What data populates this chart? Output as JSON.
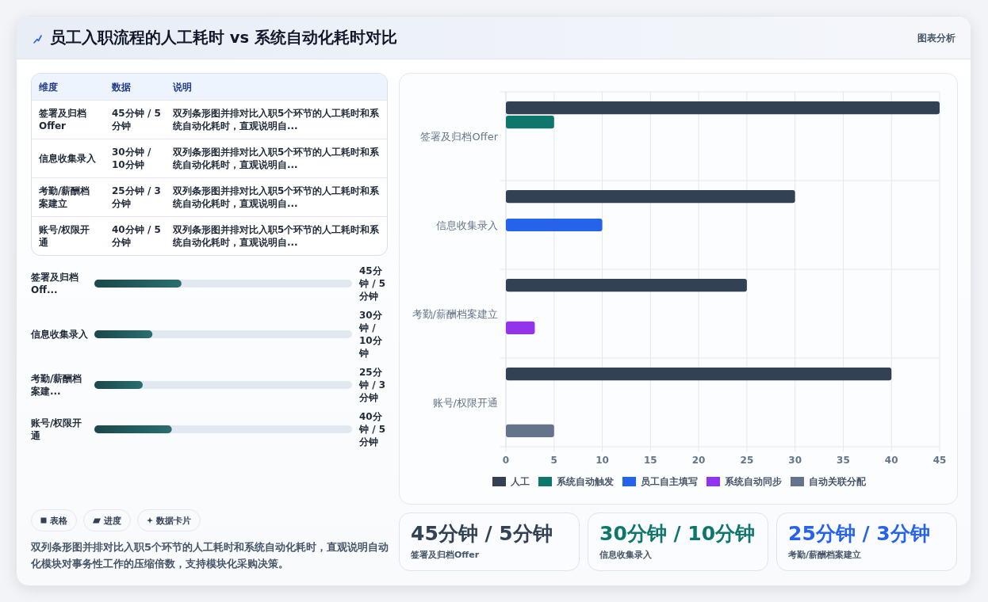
{
  "chart_data": [
    {
      "type": "other",
      "title": "员工入职流程的人工耗时 vs 系统自动化耗时对比",
      "annotations": [
        "图表分析"
      ]
    },
    {
      "type": "other",
      "annotations": [
        "维度",
        "数据",
        "说明",
        "签署及归档Offer",
        "45分钟 / 5分钟",
        "双列条形图并排对比入职5个环节的人工耗时和系统自动化耗时，直观说明自...",
        "信息收集录入",
        "30分钟 / 10分钟",
        "双列条形图并排对比入职5个环节的人工耗时和系统自动化耗时，直观说明自...",
        "考勤/薪酬档案建立",
        "25分钟 / 3分钟",
        "双列条形图并排对比入职5个环节的人工耗时和系统自动化耗时，直观说明自...",
        "账号/权限开通",
        "40分钟 / 5分钟",
        "双列条形图并排对比入职5个环节的人工耗时和系统自动化耗时，直观说明自..."
      ]
    },
    {
      "type": "bar",
      "orientation": "horizontal",
      "categories": [
        "签署及归档Off...",
        "信息收集录入",
        "考勤/薪酬档案建...",
        "账号/权限开通"
      ],
      "values": [
        45,
        30,
        25,
        40
      ],
      "color": "#21595c",
      "value_labels": [
        "45分钟 / 5分钟",
        "30分钟 / 10分钟",
        "25分钟 / 3分钟",
        "40分钟 / 5分钟"
      ]
    },
    {
      "type": "other",
      "annotations": [
        "表格",
        "进度",
        "数据卡片",
        "双列条形图并排对比入职5个环节的人工耗时和系统自动化耗时，直观说明自动化模块对事务性工作的压缩倍数，支持模块化采购决策。"
      ]
    },
    {
      "type": "bar",
      "orientation": "horizontal",
      "categories": [
        "签署及归档Offer",
        "信息收集录入",
        "考勤/薪酬档案建立",
        "账号/权限开通"
      ],
      "series": [
        {
          "name": "人工",
          "color": "#334155",
          "values": [
            45,
            30,
            25,
            40
          ]
        },
        {
          "name": "系统自动触发",
          "color": "#0f766e",
          "values": [
            5,
            null,
            null,
            null
          ]
        },
        {
          "name": "员工自主填写",
          "color": "#2563eb",
          "values": [
            null,
            10,
            null,
            null
          ]
        },
        {
          "name": "系统自动同步",
          "color": "#9333ea",
          "values": [
            null,
            null,
            3,
            null
          ]
        },
        {
          "name": "自动关联分配",
          "color": "#64748b",
          "values": [
            null,
            null,
            null,
            5
          ]
        }
      ],
      "xlim": [
        0,
        45
      ],
      "xticks": [
        0,
        5,
        10,
        15,
        20,
        25,
        30,
        35,
        40,
        45
      ],
      "grid": true,
      "legend": "bottom"
    },
    {
      "type": "other",
      "annotations": [
        "45分钟 / 5分钟",
        "签署及归档Offer",
        "30分钟 / 10分钟",
        "信息收集录入",
        "25分钟 / 3分钟",
        "考勤/薪酬档案建立"
      ],
      "colors": [
        "#334155",
        "#0f766e",
        "#2563eb"
      ]
    }
  ]
}
